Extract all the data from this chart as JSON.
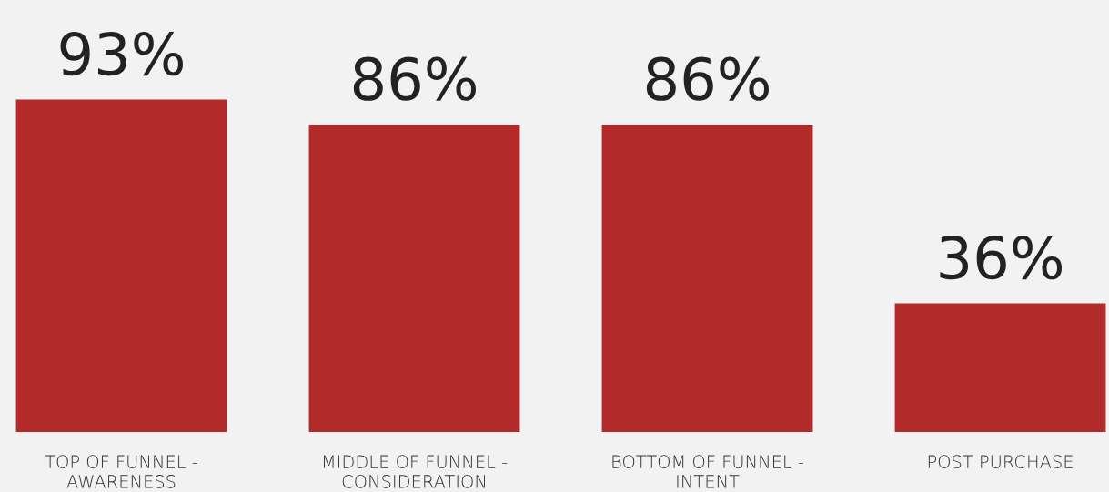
{
  "chart_data": {
    "type": "bar",
    "categories": [
      "TOP OF FUNNEL -\nAWARENESS",
      "MIDDLE OF FUNNEL -\nCONSIDERATION",
      "BOTTOM OF FUNNEL -\nINTENT",
      "POST PURCHASE"
    ],
    "values": [
      93,
      86,
      86,
      36
    ],
    "value_labels": [
      "93%",
      "86%",
      "86%",
      "36%"
    ],
    "color": "#b22b2a",
    "grid": false,
    "legend": false
  }
}
